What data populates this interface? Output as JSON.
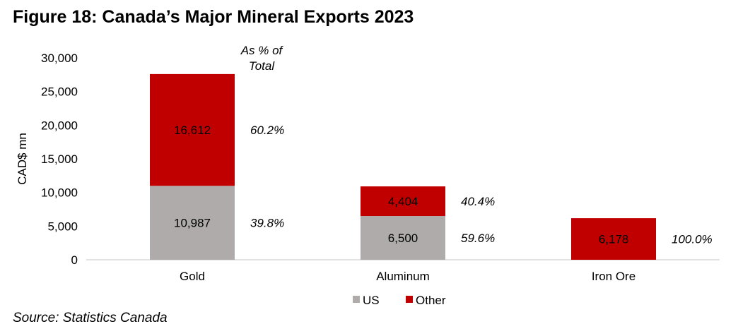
{
  "chart_data": {
    "type": "bar",
    "stacked": true,
    "title": "Figure 18: Canada’s Major Mineral Exports 2023",
    "ylabel": "CAD$ mn",
    "xlabel": "",
    "ylim": [
      0,
      30000
    ],
    "yticks": [
      0,
      5000,
      10000,
      15000,
      20000,
      25000,
      30000
    ],
    "ytick_labels": [
      "0",
      "5,000",
      "10,000",
      "15,000",
      "20,000",
      "25,000",
      "30,000"
    ],
    "categories": [
      "Gold",
      "Aluminum",
      "Iron Ore"
    ],
    "series": [
      {
        "name": "US",
        "color": "#AFABAB",
        "values": [
          10987,
          6500,
          0
        ],
        "labels": [
          "10,987",
          "6,500",
          ""
        ],
        "share_labels": [
          "39.8%",
          "59.6%",
          ""
        ]
      },
      {
        "name": "Other",
        "color": "#C00000",
        "values": [
          16612,
          4404,
          6178
        ],
        "labels": [
          "16,612",
          "4,404",
          "6,178"
        ],
        "share_labels": [
          "60.2%",
          "40.4%",
          "100.0%"
        ]
      }
    ],
    "annotation": [
      "As % of",
      "Total"
    ],
    "legend_position": "bottom",
    "grid": false
  },
  "source": "Source: Statistics Canada"
}
